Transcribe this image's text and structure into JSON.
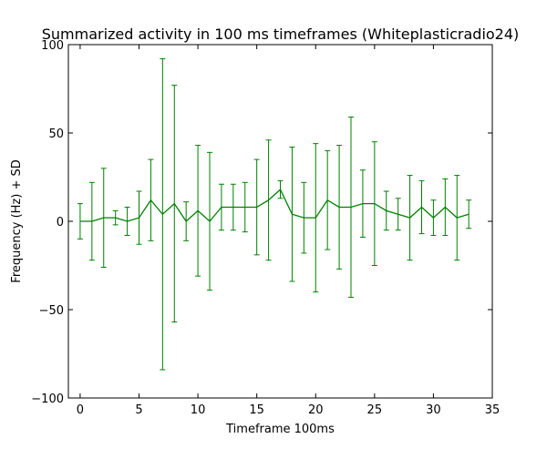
{
  "chart_data": {
    "type": "line",
    "title": "Summarized activity in 100 ms timeframes (Whiteplasticradio24)",
    "xlabel": "Timeframe 100ms",
    "ylabel": "Frequency (Hz) + SD",
    "xlim": [
      -1,
      35
    ],
    "ylim": [
      -100,
      100
    ],
    "xticks": [
      0,
      5,
      10,
      15,
      20,
      25,
      30,
      35
    ],
    "yticks": [
      -100,
      -50,
      0,
      50,
      100
    ],
    "xtick_labels": [
      "0",
      "5",
      "10",
      "15",
      "20",
      "25",
      "30",
      "35"
    ],
    "ytick_labels": [
      "−100",
      "−50",
      "0",
      "50",
      "100"
    ],
    "grid": false,
    "legend": null,
    "series_color": "#008000",
    "x": [
      0,
      1,
      2,
      3,
      4,
      5,
      6,
      7,
      8,
      9,
      10,
      11,
      12,
      13,
      14,
      15,
      16,
      17,
      18,
      19,
      20,
      21,
      22,
      23,
      24,
      25,
      26,
      27,
      28,
      29,
      30,
      31,
      32,
      33
    ],
    "y": [
      0,
      0,
      2,
      2,
      0,
      2,
      12,
      4,
      10,
      0,
      6,
      0,
      8,
      8,
      8,
      8,
      12,
      18,
      4,
      2,
      2,
      12,
      8,
      8,
      10,
      10,
      6,
      4,
      2,
      8,
      2,
      8,
      2,
      4
    ],
    "sd": [
      10,
      22,
      28,
      4,
      8,
      15,
      23,
      88,
      67,
      11,
      37,
      39,
      13,
      13,
      14,
      27,
      34,
      5,
      38,
      20,
      42,
      28,
      35,
      51,
      19,
      35,
      11,
      9,
      24,
      15,
      10,
      16,
      24,
      8
    ]
  }
}
